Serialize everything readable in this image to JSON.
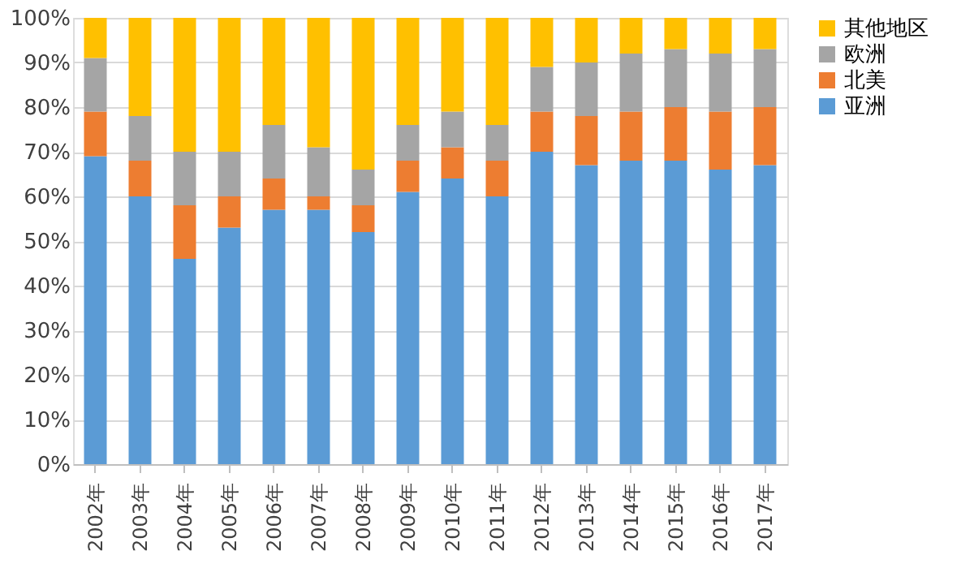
{
  "chart_data": {
    "type": "bar",
    "stacked": true,
    "categories": [
      "2002年",
      "2003年",
      "2004年",
      "2005年",
      "2006年",
      "2007年",
      "2008年",
      "2009年",
      "2010年",
      "2011年",
      "2012年",
      "2013年",
      "2014年",
      "2015年",
      "2016年",
      "2017年"
    ],
    "series": [
      {
        "name": "亚洲",
        "color": "#5b9bd5",
        "values": [
          69,
          60,
          46,
          53,
          57,
          57,
          52,
          61,
          64,
          60,
          70,
          67,
          68,
          68,
          66,
          67
        ]
      },
      {
        "name": "北美",
        "color": "#ed7d31",
        "values": [
          10,
          8,
          12,
          7,
          7,
          3,
          6,
          7,
          7,
          8,
          9,
          11,
          11,
          12,
          13,
          13
        ]
      },
      {
        "name": "欧洲",
        "color": "#a5a5a5",
        "values": [
          12,
          10,
          12,
          10,
          12,
          11,
          8,
          8,
          8,
          8,
          10,
          12,
          13,
          13,
          13,
          13
        ]
      },
      {
        "name": "其他地区",
        "color": "#ffc000",
        "values": [
          9,
          22,
          30,
          30,
          24,
          29,
          34,
          24,
          21,
          24,
          11,
          10,
          8,
          7,
          8,
          7
        ]
      }
    ],
    "ylim": [
      0,
      100
    ],
    "yticks": [
      {
        "value": 0,
        "label": "0%"
      },
      {
        "value": 10,
        "label": "10%"
      },
      {
        "value": 20,
        "label": "20%"
      },
      {
        "value": 30,
        "label": "30%"
      },
      {
        "value": 40,
        "label": "40%"
      },
      {
        "value": 50,
        "label": "50%"
      },
      {
        "value": 60,
        "label": "60%"
      },
      {
        "value": 70,
        "label": "70%"
      },
      {
        "value": 80,
        "label": "80%"
      },
      {
        "value": 90,
        "label": "90%"
      },
      {
        "value": 100,
        "label": "100%"
      }
    ],
    "grid": "y",
    "legend": "right"
  }
}
